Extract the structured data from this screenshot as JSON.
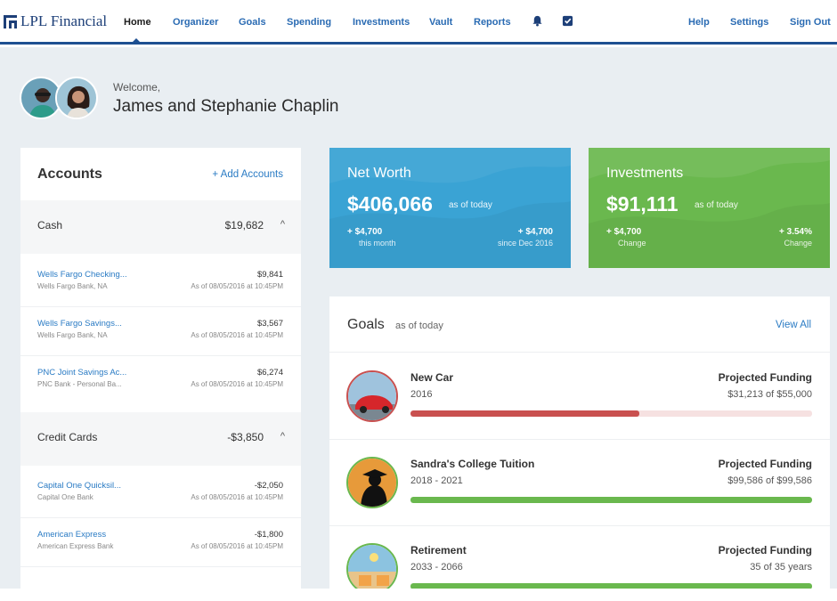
{
  "nav": {
    "brand": "LPL Financial",
    "links": [
      "Home",
      "Organizer",
      "Goals",
      "Spending",
      "Investments",
      "Vault",
      "Reports"
    ],
    "right_links": [
      "Help",
      "Settings",
      "Sign Out"
    ],
    "icons": [
      "bell-icon",
      "checkbox-icon"
    ],
    "active": "Home"
  },
  "welcome": {
    "greeting": "Welcome,",
    "name": "James and Stephanie Chaplin"
  },
  "accounts": {
    "title": "Accounts",
    "add_label": "+ Add Accounts",
    "groups": [
      {
        "name": "Cash",
        "total": "$19,682",
        "chevron": "^",
        "rows": [
          {
            "name": "Wells Fargo Checking...",
            "bank": "Wells Fargo Bank, NA",
            "amount": "$9,841",
            "date": "As of 08/05/2016 at 10:45PM"
          },
          {
            "name": "Wells Fargo Savings...",
            "bank": "Wells Fargo Bank, NA",
            "amount": "$3,567",
            "date": "As of 08/05/2016 at 10:45PM"
          },
          {
            "name": "PNC Joint Savings Ac...",
            "bank": "PNC Bank - Personal Ba...",
            "amount": "$6,274",
            "date": "As of 08/05/2016 at 10:45PM"
          }
        ]
      },
      {
        "name": "Credit Cards",
        "total": "-$3,850",
        "chevron": "^",
        "rows": [
          {
            "name": "Capital One Quicksil...",
            "bank": "Capital One Bank",
            "amount": "-$2,050",
            "date": "As of 08/05/2016 at 10:45PM"
          },
          {
            "name": "American Express",
            "bank": "American Express Bank",
            "amount": "-$1,800",
            "date": "As of 08/05/2016 at 10:45PM"
          }
        ]
      }
    ]
  },
  "net_worth": {
    "title": "Net Worth",
    "value": "$406,066",
    "as_of": "as of today",
    "left_value": "+ $4,700",
    "left_label": "this month",
    "right_value": "+ $4,700",
    "right_label": "since Dec 2016",
    "color": "#3aa3d4"
  },
  "investments": {
    "title": "Investments",
    "value": "$91,111",
    "as_of": "as of today",
    "left_value": "+ $4,700",
    "left_label": "Change",
    "right_value": "+ 3.54%",
    "right_label": "Change",
    "color": "#6ab84e"
  },
  "goals": {
    "title": "Goals",
    "as_of": "as of today",
    "view_all": "View All",
    "items": [
      {
        "name": "New Car",
        "years": "2016",
        "label": "Projected Funding",
        "amount": "$31,213 of $55,000",
        "progress": 0.57,
        "color": "#c9504f",
        "track": "#f6e1e1"
      },
      {
        "name": "Sandra's College Tuition",
        "years": "2018 - 2021",
        "label": "Projected Funding",
        "amount": "$99,586 of $99,586",
        "progress": 1.0,
        "color": "#6ab84e",
        "track": "#e4f1dd"
      },
      {
        "name": "Retirement",
        "years": "2033 - 2066",
        "label": "Projected Funding",
        "amount": "35 of 35 years",
        "progress": 1.0,
        "color": "#6ab84e",
        "track": "#e4f1dd"
      }
    ]
  }
}
